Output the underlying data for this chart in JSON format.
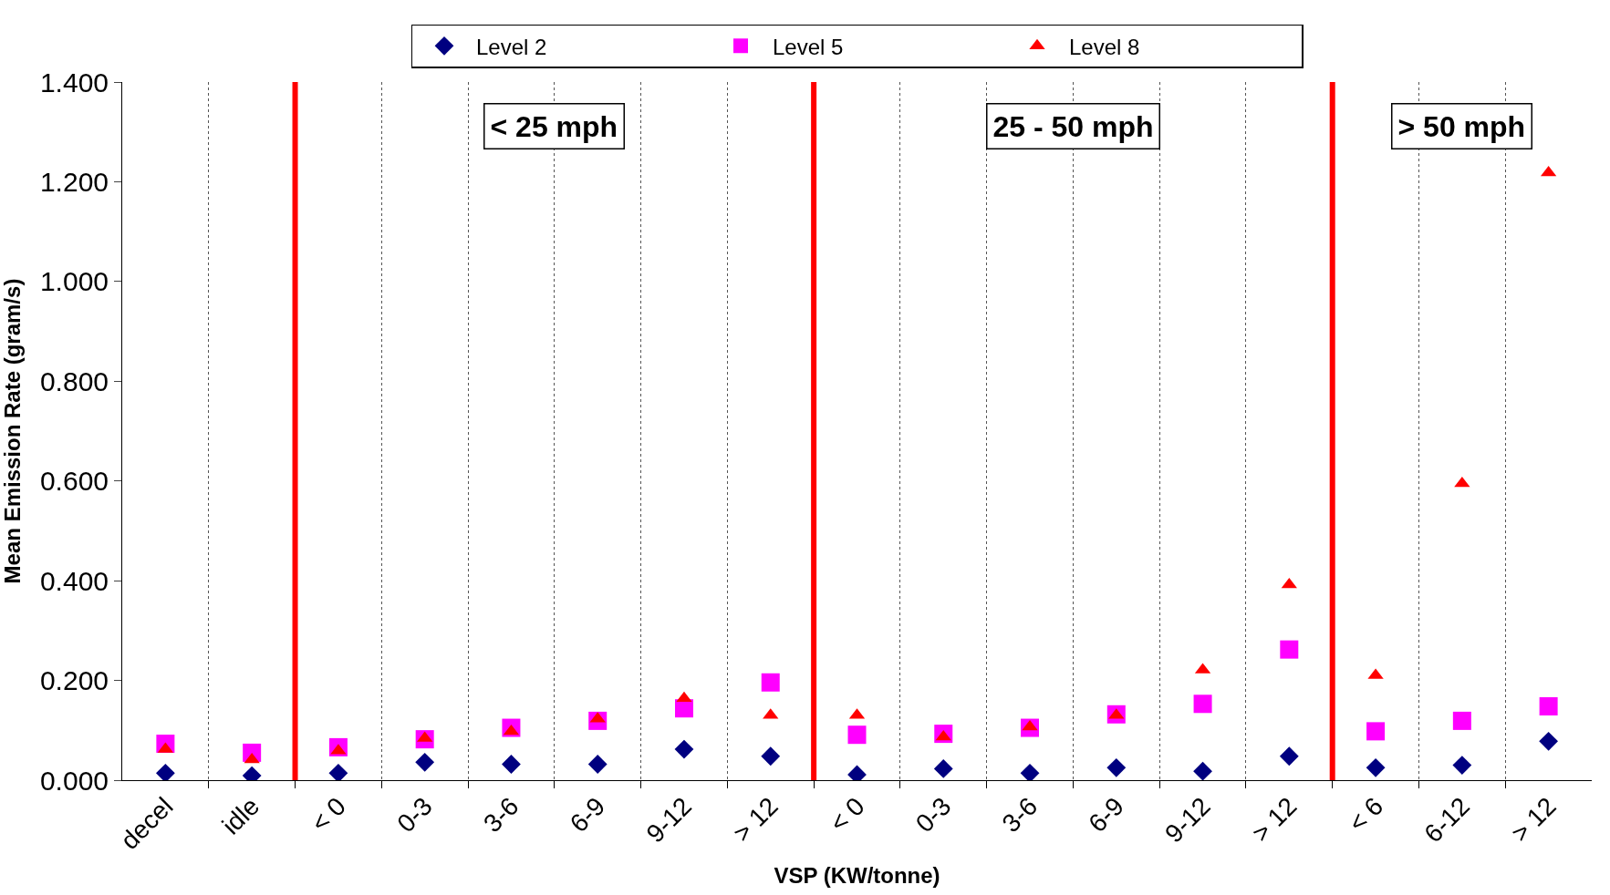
{
  "chart_data": {
    "type": "scatter",
    "xlabel": "VSP (KW/tonne)",
    "ylabel": "Mean Emission Rate (gram/s)",
    "categories": [
      "decel",
      "idle",
      "< 0",
      "0-3",
      "3-6",
      "6-9",
      "9-12",
      "> 12",
      "< 0",
      "0-3",
      "3-6",
      "6-9",
      "9-12",
      "> 12",
      "< 6",
      "6-12",
      "> 12"
    ],
    "series": [
      {
        "name": "Level 2",
        "color": "#000080",
        "marker": "diamond",
        "values": [
          0.014,
          0.009,
          0.014,
          0.036,
          0.032,
          0.032,
          0.062,
          0.048,
          0.011,
          0.023,
          0.014,
          0.025,
          0.018,
          0.048,
          0.025,
          0.03,
          0.078
        ]
      },
      {
        "name": "Level 5",
        "color": "#ff00ff",
        "marker": "square",
        "values": [
          0.073,
          0.055,
          0.066,
          0.082,
          0.105,
          0.119,
          0.144,
          0.196,
          0.091,
          0.093,
          0.105,
          0.132,
          0.153,
          0.262,
          0.098,
          0.119,
          0.148
        ]
      },
      {
        "name": "Level 8",
        "color": "#ff0000",
        "marker": "triangle",
        "values": [
          0.062,
          0.041,
          0.059,
          0.084,
          0.098,
          0.123,
          0.164,
          0.13,
          0.13,
          0.087,
          0.107,
          0.13,
          0.221,
          0.392,
          0.21,
          0.595,
          1.218
        ]
      }
    ],
    "ylim": [
      0,
      1.4
    ],
    "yticks": [
      {
        "value": 0,
        "label": "0.000"
      },
      {
        "value": 0.2,
        "label": "0.200"
      },
      {
        "value": 0.4,
        "label": "0.400"
      },
      {
        "value": 0.6,
        "label": "0.600"
      },
      {
        "value": 0.8,
        "label": "0.800"
      },
      {
        "value": 1.0,
        "label": "1.000"
      },
      {
        "value": 1.2,
        "label": "1.200"
      },
      {
        "value": 1.4,
        "label": "1.400"
      }
    ],
    "annotations": [
      "< 25 mph",
      "25 - 50 mph",
      "> 50 mph"
    ],
    "grid": "x",
    "legend": "top"
  }
}
